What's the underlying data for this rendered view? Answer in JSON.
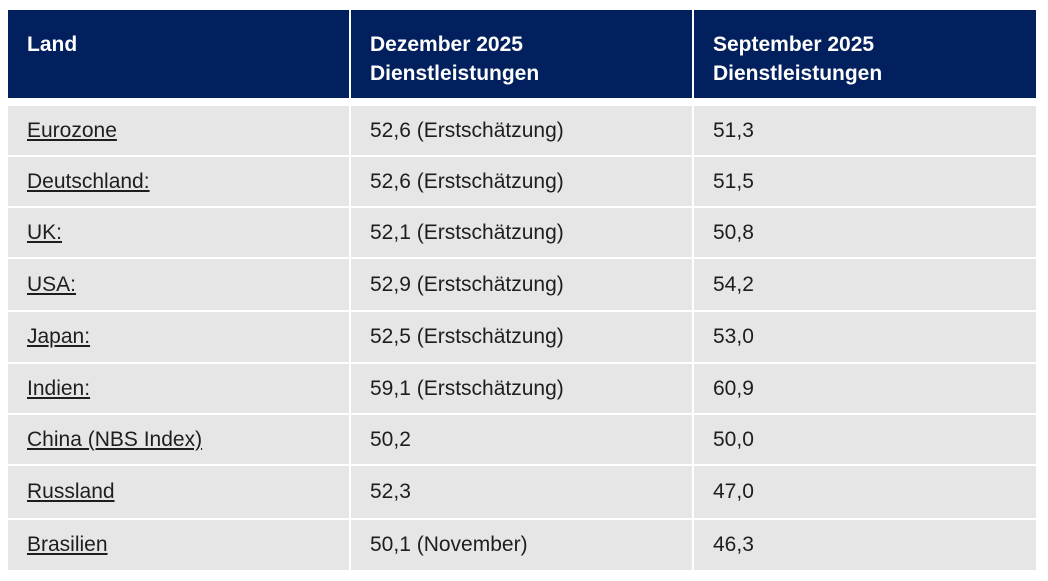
{
  "table": {
    "header": [
      [
        "Land"
      ],
      [
        "Dezember 2025",
        "Dienstleistungen"
      ],
      [
        "September 2025",
        "Dienstleistungen"
      ]
    ],
    "rows": [
      [
        "Eurozone",
        "52,6 (Erstschätzung)",
        "51,3"
      ],
      [
        "Deutschland:",
        "52,6 (Erstschätzung)",
        "51,5"
      ],
      [
        "UK:",
        "52,1 (Erstschätzung)",
        "50,8"
      ],
      [
        "USA:",
        "52,9 (Erstschätzung)",
        "54,2"
      ],
      [
        "Japan:",
        "52,5 (Erstschätzung)",
        "53,0"
      ],
      [
        "Indien:",
        "59,1 (Erstschätzung)",
        "60,9"
      ],
      [
        "China (NBS Index)",
        "50,2",
        "50,0"
      ],
      [
        "Russland",
        "52,3",
        "47,0"
      ],
      [
        "Brasilien",
        "50,1 (November)",
        "46,3"
      ]
    ]
  }
}
